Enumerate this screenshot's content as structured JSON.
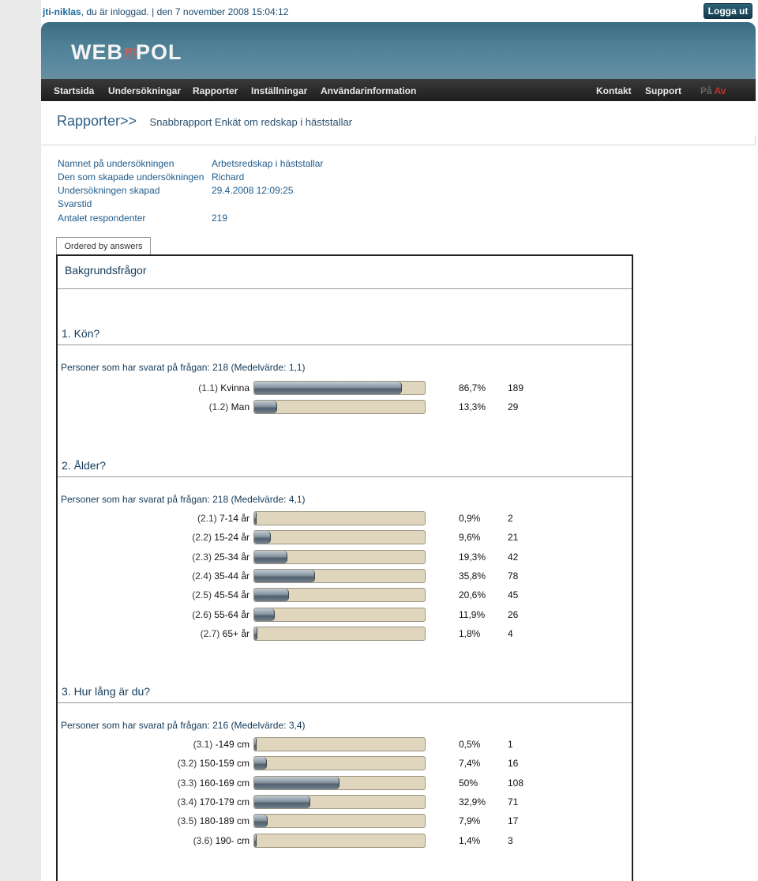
{
  "topbar": {
    "user": "jti-niklas",
    "logged_in_text": ", du är inloggad.",
    "separator": "|",
    "datetime": "den 7 november 2008 15:04:12",
    "logout_label": "Logga ut"
  },
  "brand": {
    "logo_part1": "WEB",
    "logo_ro": "RO",
    "logo_part2": "POL"
  },
  "nav": {
    "items": [
      "Startsida",
      "Undersökningar",
      "Rapporter",
      "Inställningar",
      "Användarinformation"
    ],
    "right_items": [
      "Kontakt",
      "Support"
    ],
    "lang_on": "På",
    "lang_off": "Av"
  },
  "breadcrumb": {
    "link": "Rapporter>>",
    "title": "Snabbrapport Enkät om redskap i häststallar"
  },
  "survey_info": [
    {
      "label": "Namnet på undersökningen",
      "value": "Arbetsredskap i häststallar"
    },
    {
      "label": "Den som skapade undersökningen",
      "value": "Richard"
    },
    {
      "label": "Undersökningen skapad",
      "value": "29.4.2008 12:09:25"
    },
    {
      "label": "Svarstid",
      "value": ""
    },
    {
      "label": "Antalet respondenter",
      "value": "219"
    }
  ],
  "tab": {
    "label": "Ordered by answers"
  },
  "section": {
    "title": "Bakgrundsfrågor"
  },
  "questions": [
    {
      "title": "1. Kön?",
      "stats": "Personer som har svarat på frågan: 218 (Medelvärde: 1,1)",
      "answers": [
        {
          "code": "(1.1)",
          "label": "Kvinna",
          "percent_text": "86,7%",
          "percent": 86.7,
          "count": "189"
        },
        {
          "code": "(1.2)",
          "label": "Man",
          "percent_text": "13,3%",
          "percent": 13.3,
          "count": "29"
        }
      ]
    },
    {
      "title": "2. Ålder?",
      "stats": "Personer som har svarat på frågan: 218 (Medelvärde: 4,1)",
      "answers": [
        {
          "code": "(2.1)",
          "label": "7-14 år",
          "percent_text": "0,9%",
          "percent": 0.9,
          "count": "2"
        },
        {
          "code": "(2.2)",
          "label": "15-24 år",
          "percent_text": "9,6%",
          "percent": 9.6,
          "count": "21"
        },
        {
          "code": "(2.3)",
          "label": "25-34 år",
          "percent_text": "19,3%",
          "percent": 19.3,
          "count": "42"
        },
        {
          "code": "(2.4)",
          "label": "35-44 år",
          "percent_text": "35,8%",
          "percent": 35.8,
          "count": "78"
        },
        {
          "code": "(2.5)",
          "label": "45-54 år",
          "percent_text": "20,6%",
          "percent": 20.6,
          "count": "45"
        },
        {
          "code": "(2.6)",
          "label": "55-64 år",
          "percent_text": "11,9%",
          "percent": 11.9,
          "count": "26"
        },
        {
          "code": "(2.7)",
          "label": "65+ år",
          "percent_text": "1,8%",
          "percent": 1.8,
          "count": "4"
        }
      ]
    },
    {
      "title": "3. Hur lång är du?",
      "stats": "Personer som har svarat på frågan: 216 (Medelvärde: 3,4)",
      "answers": [
        {
          "code": "(3.1)",
          "label": "-149 cm",
          "percent_text": "0,5%",
          "percent": 0.5,
          "count": "1"
        },
        {
          "code": "(3.2)",
          "label": "150-159 cm",
          "percent_text": "7,4%",
          "percent": 7.4,
          "count": "16"
        },
        {
          "code": "(3.3)",
          "label": "160-169 cm",
          "percent_text": "50%",
          "percent": 50,
          "count": "108"
        },
        {
          "code": "(3.4)",
          "label": "170-179 cm",
          "percent_text": "32,9%",
          "percent": 32.9,
          "count": "71"
        },
        {
          "code": "(3.5)",
          "label": "180-189 cm",
          "percent_text": "7,9%",
          "percent": 7.9,
          "count": "17"
        },
        {
          "code": "(3.6)",
          "label": "190- cm",
          "percent_text": "1,4%",
          "percent": 1.4,
          "count": "3"
        }
      ]
    }
  ]
}
